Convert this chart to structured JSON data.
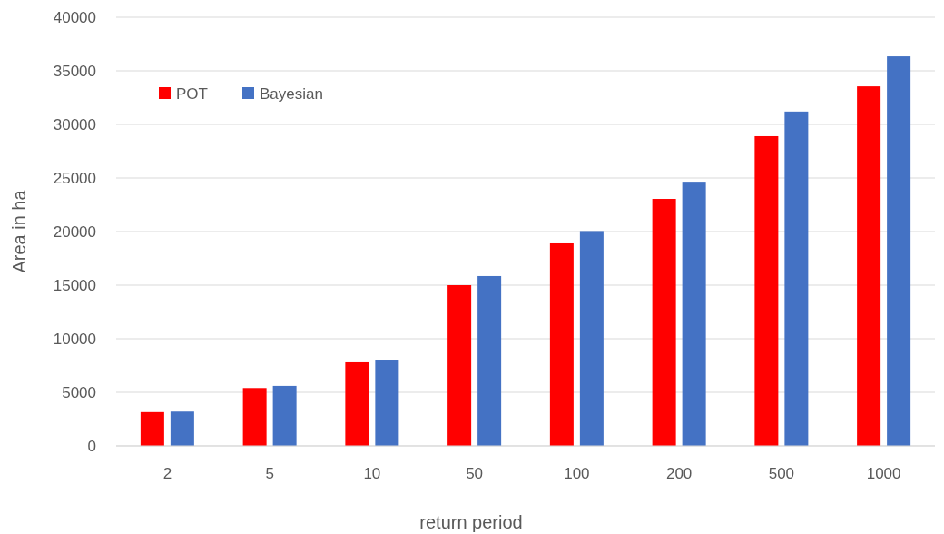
{
  "chart_data": {
    "type": "bar",
    "xlabel": "return period",
    "ylabel": "Area in ha",
    "categories": [
      "2",
      "5",
      "10",
      "50",
      "100",
      "200",
      "500",
      "1000"
    ],
    "series": [
      {
        "name": "POT",
        "color": "#ff0000",
        "values": [
          3150,
          5400,
          7800,
          15000,
          18900,
          23050,
          28900,
          33550
        ]
      },
      {
        "name": "Bayesian",
        "color": "#4472c4",
        "values": [
          3200,
          5600,
          8050,
          15850,
          20050,
          24650,
          31200,
          36350
        ]
      }
    ],
    "ylim": [
      0,
      40000
    ],
    "yticks": [
      0,
      5000,
      10000,
      15000,
      20000,
      25000,
      30000,
      35000,
      40000
    ],
    "grid": "y",
    "legend": "top left"
  }
}
